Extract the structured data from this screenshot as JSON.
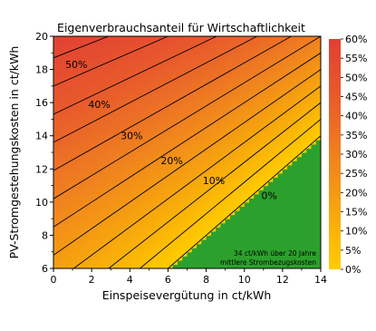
{
  "chart_data": {
    "type": "heatmap",
    "title": "Eigenverbrauchsanteil für Wirtschaftlichkeit",
    "xlabel": "Einspeisevergütung in ct/kWh",
    "ylabel": "PV-Stromgestehungskosten in ct/kWh",
    "xlim": [
      0,
      14
    ],
    "ylim": [
      6,
      20
    ],
    "x_ticks": [
      "0",
      "2",
      "4",
      "6",
      "8",
      "10",
      "12",
      "14"
    ],
    "y_ticks": [
      "6",
      "8",
      "10",
      "12",
      "14",
      "16",
      "18",
      "20"
    ],
    "grid": false,
    "electricity_price_ct_per_kwh": 34,
    "contours": [
      {
        "level": 0,
        "label": "0%",
        "label_x": 11.3,
        "label_y": 10.4
      },
      {
        "level": 10,
        "label": "10%",
        "label_x": 8.4,
        "label_y": 11.3
      },
      {
        "level": 20,
        "label": "20%",
        "label_x": 6.2,
        "label_y": 12.5
      },
      {
        "level": 30,
        "label": "30%",
        "label_x": 4.1,
        "label_y": 14.0
      },
      {
        "level": 40,
        "label": "40%",
        "label_x": 2.4,
        "label_y": 15.9
      },
      {
        "level": 50,
        "label": "50%",
        "label_x": 1.2,
        "label_y": 18.3
      }
    ],
    "extra_contour_levels": [
      5,
      15,
      25,
      35,
      45,
      55
    ],
    "colorbar": {
      "min": 0,
      "max": 60,
      "ticks": [
        "0%",
        "5%",
        "10%",
        "15%",
        "20%",
        "25%",
        "30%",
        "35%",
        "40%",
        "45%",
        "50%",
        "55%",
        "60%"
      ]
    },
    "negative_region_color": "#2ca02c",
    "colormap": [
      "#ffcc00",
      "#f7a60d",
      "#ef8020",
      "#e85a2c",
      "#e04033"
    ],
    "annotation": [
      "34 ct/kWh über 20 Jahre",
      "mittlere Strombezugskosten"
    ]
  }
}
